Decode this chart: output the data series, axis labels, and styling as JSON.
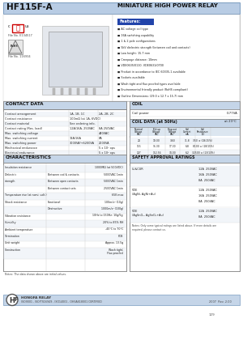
{
  "title_left": "HF115F-A",
  "title_right": "MINIATURE HIGH POWER RELAY",
  "title_bg": "#b8cce4",
  "section_header_bg": "#c5d5e8",
  "page_bg": "#e8eef5",
  "features_header": "Features:",
  "features": [
    "AC voltage coil type",
    "16A switching capability",
    "1 & 2 pole configurations",
    "5kV dielectric strength (between coil and contacts)",
    "Low height: 15.7 mm",
    "Creepage distance: 10mm",
    "VDE0635/0110, VDE0631/0700",
    "Product in accordance to IEC 60335-1 available",
    "Sockets available",
    "Wash tight and flux proofed types available",
    "Environmental friendly product (RoHS compliant)",
    "Outline Dimensions: (29.0 x 12.7 x 15.7) mm"
  ],
  "contact_header": "CONTACT DATA",
  "contact_data": [
    [
      "Contact arrangement",
      "1A, 1B, 1C",
      "2A, 2B, 2C"
    ],
    [
      "Contact resistance",
      "100mΩ (at 1A, 6VDC)",
      ""
    ],
    [
      "Contact material",
      "See ordering info.",
      ""
    ],
    [
      "Contact rating (Res. load)",
      "12A/16A, 250VAC",
      "8A 250VAC"
    ],
    [
      "Max. switching voltage",
      "",
      "440VAC"
    ],
    [
      "Max. switching current",
      "12A/16A",
      "8A"
    ],
    [
      "Max. switching power",
      "3000VA/+6200VA",
      "2000VA"
    ],
    [
      "Mechanical endurance",
      "",
      "5 x 10⁷ ops"
    ],
    [
      "Electrical endurance",
      "",
      "5 x 10⁵ ops"
    ]
  ],
  "coil_header": "COIL",
  "coil_data2_header": "COIL DATA (at 50Hz)",
  "coil_data2_sub": "at 23°C",
  "coil_data2_cols": [
    "Nominal\nVoltage\nVAC",
    "Pick-up\nVoltage\nVAC",
    "Drop-out\nVoltage\nVAC",
    "Coil\nCurrent\nmA",
    "Coil\nResistance\n(Ω)"
  ],
  "coil_data2_rows": [
    [
      "24",
      "19.00",
      "3.60",
      "31.8",
      "350 ± (18/15%)"
    ],
    [
      "115",
      "91.30",
      "17.30",
      "6.8",
      "8100 ± (18/15%)"
    ],
    [
      "127",
      "112.56",
      "34.00",
      "6.2",
      "32500 ± (13/13%)"
    ]
  ],
  "char_header": "CHARACTERISTICS",
  "char_data": [
    [
      "Insulation resistance",
      "",
      "1000MΩ (at 500VDC)"
    ],
    [
      "Dielectric",
      "Between coil & contacts",
      "5000VAC 1min"
    ],
    [
      "strength",
      "Between open contacts",
      "5000VAC 1min"
    ],
    [
      "",
      "Between contact sets",
      "2500VAC 1min"
    ],
    [
      "Temperature rise (at nomi. volt.)",
      "",
      "65K max"
    ],
    [
      "Shock resistance",
      "Functional",
      "100m/s² (10g)"
    ],
    [
      "",
      "Destructive",
      "1000m/s² (100g)"
    ],
    [
      "Vibration resistance",
      "",
      "10Hz to 150Hz: 10g/5g"
    ],
    [
      "Humidity",
      "",
      "20% to 85% RH"
    ],
    [
      "Ambient temperature",
      "",
      "-40°C to 70°C"
    ],
    [
      "Termination",
      "",
      "PCB"
    ],
    [
      "Unit weight",
      "",
      "Approx. 13.5g"
    ],
    [
      "Construction",
      "",
      "Wash tight;\nFlux proofed"
    ]
  ],
  "safety_header": "SAFETY APPROVAL RATINGS",
  "safety_data": [
    [
      "UL&CUR",
      "12A  250VAC",
      "16A  250VAC",
      "8A  250VAC"
    ],
    [
      "VDE\n(AgNi, AgNi+Au)",
      "12A  250VAC",
      "16A  250VAC",
      "8A  250VAC"
    ],
    [
      "VDE\n(AgSnO₂, AgSnO₂+Au)",
      "12A  250VAC",
      "8A  250VAC",
      ""
    ]
  ],
  "notes": "Notes: The data shown above are initial values.",
  "safety_notes": "Notes: Only some typical ratings are listed above. If more details are\nrequired, please contact us.",
  "footer_company": "HONGFA RELAY",
  "footer_certs": "ISO9001 , ISO/TS16949 , ISO14001 , OHSAS18001 CERTIFIED",
  "footer_year": "2007  Rev. 2.00",
  "page_num": "129"
}
